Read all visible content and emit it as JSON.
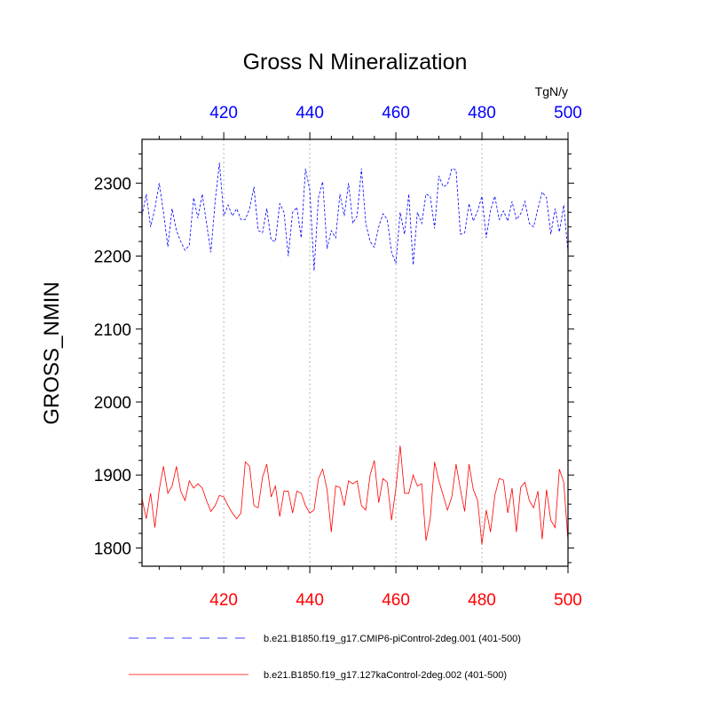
{
  "chart_data": {
    "type": "line",
    "title": "Gross N Mineralization",
    "ylabel": "GROSS_NMIN",
    "units": "TgN/y",
    "xlim": [
      401,
      500
    ],
    "ylim": [
      1775,
      2360
    ],
    "x_ticks": [
      "420",
      "440",
      "460",
      "480",
      "500"
    ],
    "x_tick_values": [
      420,
      440,
      460,
      480,
      500
    ],
    "y_ticks": [
      "1800",
      "1900",
      "2000",
      "2100",
      "2200",
      "2300"
    ],
    "y_tick_values": [
      1800,
      1900,
      2000,
      2100,
      2200,
      2300
    ],
    "gridlines": "vertical dotted",
    "series": [
      {
        "name": "b.e21.B1850.f19_g17.CMIP6-piControl-2deg.001 (401-500)",
        "color": "#0000ff",
        "dash": "dashed",
        "axis_color": "#0000ff",
        "x_start": 401,
        "values": [
          2255,
          2285,
          2240,
          2265,
          2300,
          2260,
          2213,
          2265,
          2235,
          2220,
          2208,
          2215,
          2280,
          2252,
          2285,
          2245,
          2205,
          2275,
          2328,
          2255,
          2270,
          2255,
          2265,
          2250,
          2250,
          2265,
          2295,
          2235,
          2232,
          2265,
          2222,
          2220,
          2272,
          2260,
          2200,
          2260,
          2267,
          2225,
          2320,
          2290,
          2180,
          2280,
          2302,
          2210,
          2235,
          2225,
          2285,
          2255,
          2300,
          2245,
          2255,
          2320,
          2245,
          2220,
          2212,
          2240,
          2258,
          2250,
          2205,
          2190,
          2260,
          2230,
          2285,
          2188,
          2260,
          2245,
          2285,
          2282,
          2238,
          2310,
          2295,
          2298,
          2320,
          2318,
          2230,
          2232,
          2272,
          2248,
          2262,
          2282,
          2225,
          2263,
          2282,
          2250,
          2262,
          2248,
          2275,
          2250,
          2258,
          2275,
          2245,
          2240,
          2265,
          2288,
          2280,
          2230,
          2265,
          2233,
          2270,
          2205
        ]
      },
      {
        "name": "b.e21.B1850.f19_g17.127kaControl-2deg.002 (401-500)",
        "color": "#ff0000",
        "dash": "solid",
        "axis_color": "#ff0000",
        "x_start": 401,
        "values": [
          1868,
          1840,
          1875,
          1828,
          1880,
          1912,
          1875,
          1885,
          1912,
          1878,
          1865,
          1892,
          1882,
          1888,
          1882,
          1865,
          1850,
          1858,
          1872,
          1870,
          1858,
          1848,
          1840,
          1848,
          1918,
          1912,
          1858,
          1855,
          1897,
          1915,
          1870,
          1885,
          1843,
          1878,
          1878,
          1848,
          1878,
          1875,
          1858,
          1848,
          1852,
          1895,
          1908,
          1880,
          1822,
          1885,
          1883,
          1858,
          1892,
          1888,
          1892,
          1858,
          1852,
          1900,
          1920,
          1862,
          1895,
          1890,
          1838,
          1882,
          1940,
          1875,
          1875,
          1900,
          1885,
          1888,
          1810,
          1840,
          1918,
          1892,
          1872,
          1852,
          1870,
          1915,
          1880,
          1850,
          1915,
          1880,
          1865,
          1805,
          1852,
          1822,
          1872,
          1895,
          1893,
          1848,
          1882,
          1822,
          1883,
          1890,
          1865,
          1855,
          1878,
          1812,
          1880,
          1838,
          1828,
          1908,
          1890,
          1810
        ]
      }
    ]
  }
}
